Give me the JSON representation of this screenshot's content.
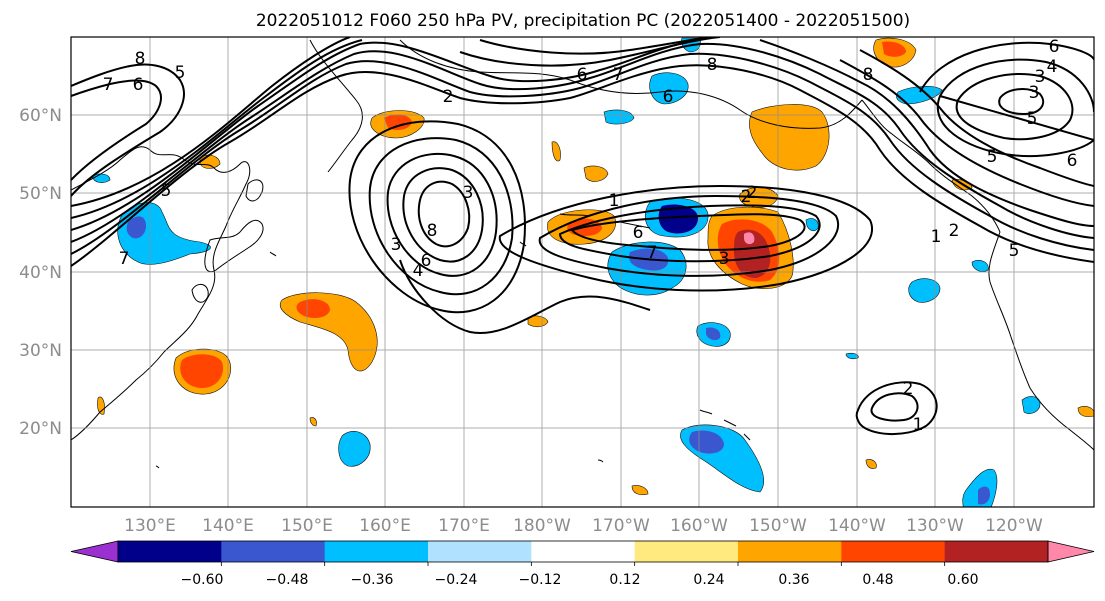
{
  "title": "2022051012 F060 250 hPa PV, precipitation PC (2022051400 - 2022051500)",
  "map": {
    "lat_labels": [
      "60°N",
      "50°N",
      "40°N",
      "30°N",
      "20°N"
    ],
    "lon_labels": [
      "130°E",
      "140°E",
      "150°E",
      "160°E",
      "170°E",
      "180°W",
      "170°W",
      "160°W",
      "150°W",
      "140°W",
      "130°W",
      "120°W"
    ],
    "pv_contour_labels": [
      "8",
      "7",
      "6",
      "5",
      "2",
      "6",
      "7",
      "8",
      "6",
      "4",
      "3",
      "3",
      "5",
      "6",
      "8",
      "6",
      "5",
      "7",
      "3",
      "8",
      "6",
      "5",
      "4",
      "3",
      "2",
      "1",
      "6",
      "7",
      "2",
      "3",
      "1",
      "2",
      "2",
      "1",
      "5"
    ]
  },
  "colorbar": {
    "colors": [
      "#9b30d0",
      "#00008b",
      "#3a57cf",
      "#00bfff",
      "#b0e2ff",
      "#ffffff",
      "#ffea80",
      "#ffa500",
      "#ff4500",
      "#b22222",
      "#ff88aa"
    ],
    "ticks": [
      "−0.60",
      "−0.48",
      "−0.36",
      "−0.24",
      "−0.12",
      "0.12",
      "0.24",
      "0.36",
      "0.48",
      "0.60"
    ]
  }
}
